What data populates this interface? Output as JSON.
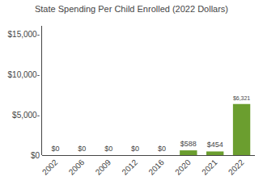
{
  "chart_data": {
    "type": "bar",
    "title": "State Spending Per Child Enrolled (2022 Dollars)",
    "categories": [
      "2002",
      "2006",
      "2009",
      "2012",
      "2016",
      "2020",
      "2021",
      "2022"
    ],
    "values": [
      0,
      0,
      0,
      0,
      0,
      588,
      454,
      6321
    ],
    "value_labels": [
      "$0",
      "$0",
      "$0",
      "$0",
      "$0",
      "$588",
      "$454",
      "$6,321"
    ],
    "data_labels": true,
    "color": "#6b9e2f",
    "ylim": [
      0,
      16000
    ],
    "yticks": [
      {
        "value": 0,
        "label": "$0"
      },
      {
        "value": 5000,
        "label": "$5,000-"
      },
      {
        "value": 10000,
        "label": "$10,000-"
      },
      {
        "value": 15000,
        "label": "$15,000-"
      }
    ],
    "grid": false
  }
}
